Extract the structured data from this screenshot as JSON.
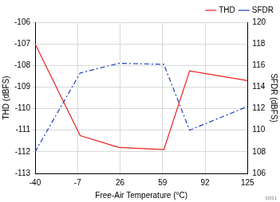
{
  "chart_data": {
    "type": "line",
    "x_label": "Free-Air Temperature (°C)",
    "y_label": "THD (dBFS)",
    "y2_label": "SFDR (dBFS)",
    "annotation": "D031",
    "x": [
      -40,
      -5,
      25,
      60,
      80,
      125
    ],
    "series": [
      {
        "name": "THD",
        "color": "#e8201c",
        "line_style": "solid",
        "marker": "none",
        "axis": "y",
        "values": [
          -107,
          -111.25,
          -111.8,
          -111.9,
          -108.25,
          -108.7
        ]
      },
      {
        "name": "SFDR",
        "color": "#1f3fbf",
        "line_style": "dashdot",
        "marker": "none",
        "axis": "y2",
        "values": [
          108,
          115.3,
          116.2,
          116.1,
          110,
          112.2
        ]
      }
    ],
    "xlim": [
      -40,
      125
    ],
    "xticks": [
      -40,
      -7,
      26,
      59,
      92,
      125
    ],
    "ylim": [
      -113,
      -106
    ],
    "yticks": [
      -113,
      -112,
      -111,
      -110,
      -109,
      -108,
      -107,
      -106
    ],
    "y2lim": [
      106,
      120
    ],
    "y2ticks": [
      106,
      108,
      110,
      112,
      114,
      116,
      118,
      120
    ],
    "grid": true,
    "legend": "top-right"
  }
}
